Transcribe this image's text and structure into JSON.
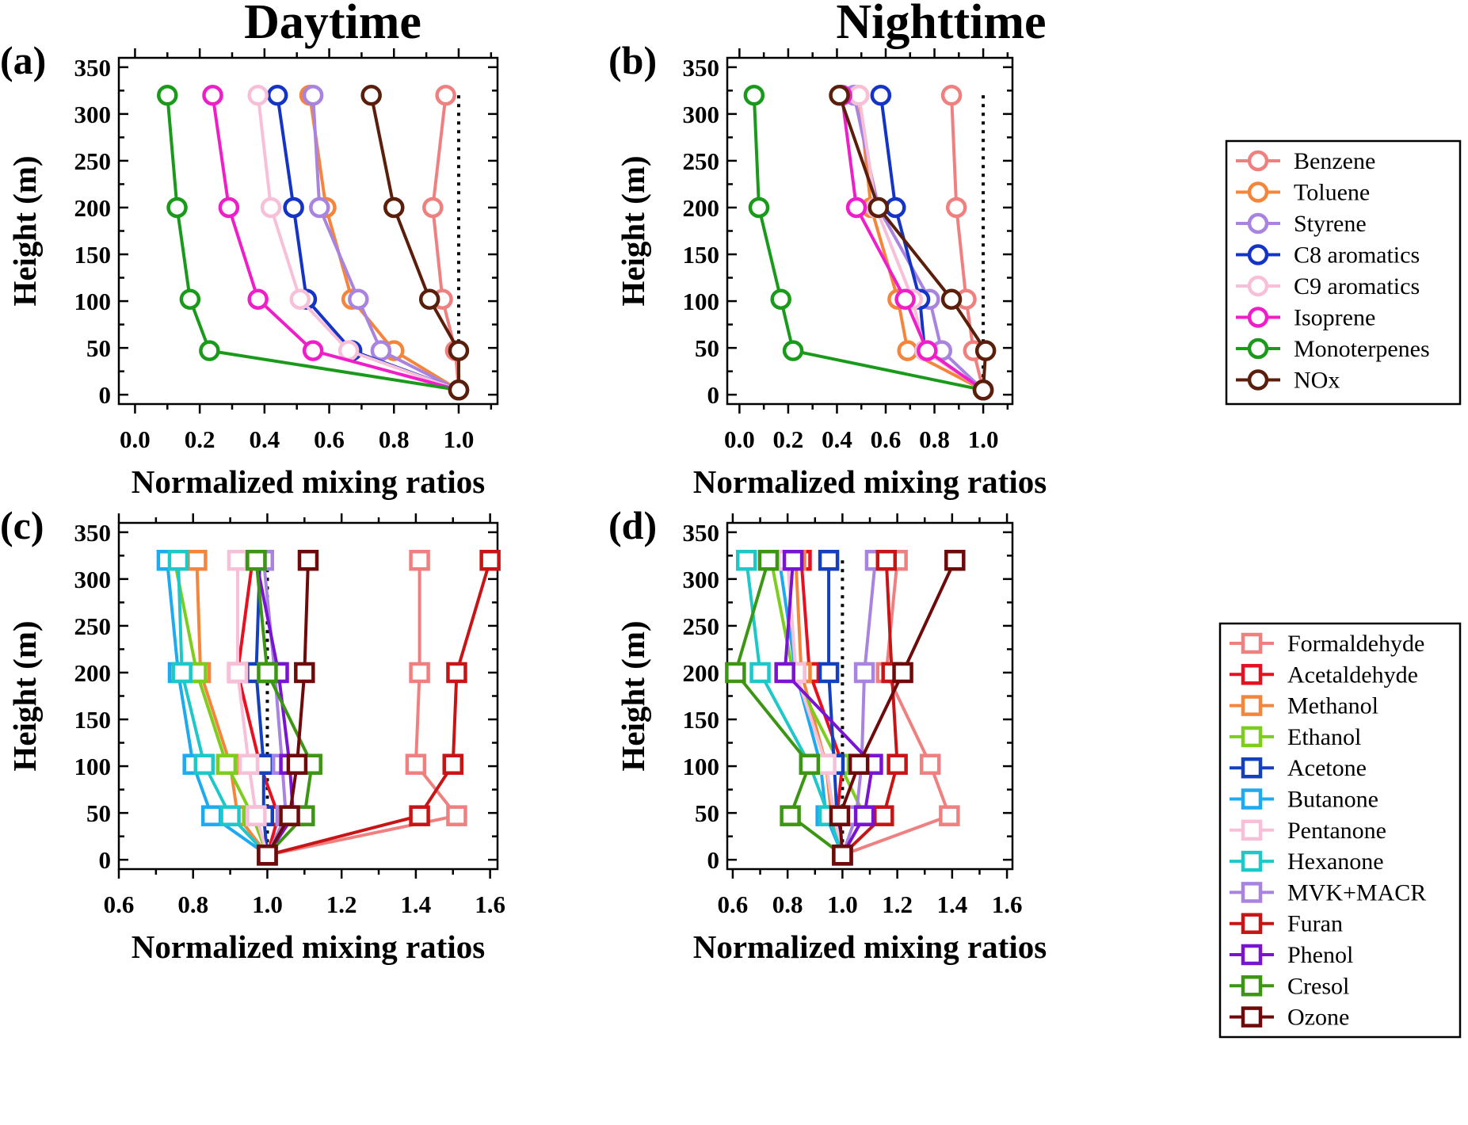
{
  "column_titles": [
    "Daytime",
    "Nighttime"
  ],
  "legends": {
    "top": [
      "Benzene",
      "Toluene",
      "Styrene",
      "C8 aromatics",
      "C9 aromatics",
      "Isoprene",
      "Monoterpenes",
      "NOx"
    ],
    "bottom": [
      "Formaldehyde",
      "Acetaldehyde",
      "Methanol",
      "Ethanol",
      "Acetone",
      "Butanone",
      "Pentanone",
      "Hexanone",
      "MVK+MACR",
      "Furan",
      "Phenol",
      "Cresol",
      "Ozone"
    ]
  },
  "colors": {
    "Benzene": "#f08080",
    "Toluene": "#f5853a",
    "Styrene": "#a883e0",
    "C8 aromatics": "#1434c8",
    "C9 aromatics": "#f8c0d8",
    "Isoprene": "#f01ec8",
    "Monoterpenes": "#1a9a1a",
    "NOx": "#5a1e0a",
    "Formaldehyde": "#f08080",
    "Acetaldehyde": "#e8101e",
    "Methanol": "#f5853a",
    "Ethanol": "#7ccd1e",
    "Acetone": "#1440c0",
    "Butanone": "#1eaaf0",
    "Pentanone": "#f8c0d8",
    "Hexanone": "#1ec8c8",
    "MVK+MACR": "#a883e0",
    "Furan": "#c81414",
    "Phenol": "#7814d2",
    "Cresol": "#3c9614",
    "Ozone": "#6e0a0a"
  },
  "chart_data": [
    {
      "panel": "(a)",
      "type": "line",
      "marker": "circle",
      "xlabel": "Normalized mixing ratios",
      "ylabel": "Height (m)",
      "xlim": [
        -0.05,
        1.12
      ],
      "ylim": [
        -10,
        360
      ],
      "xticks": [
        "0.0",
        "0.2",
        "0.4",
        "0.6",
        "0.8",
        "1.0"
      ],
      "xtick_values": [
        0,
        0.2,
        0.4,
        0.6,
        0.8,
        1.0
      ],
      "yticks": [
        "0",
        "50",
        "100",
        "150",
        "200",
        "250",
        "300",
        "350"
      ],
      "ytick_values": [
        0,
        50,
        100,
        150,
        200,
        250,
        300,
        350
      ],
      "reference_line": {
        "x": 1.0,
        "y0": 0,
        "y1": 320
      },
      "heights": [
        5,
        47,
        102,
        200,
        320
      ],
      "series": [
        {
          "name": "Benzene",
          "values": [
            1.0,
            0.99,
            0.95,
            0.92,
            0.96
          ]
        },
        {
          "name": "Toluene",
          "values": [
            1.0,
            0.8,
            0.67,
            0.59,
            0.54
          ]
        },
        {
          "name": "Styrene",
          "values": [
            1.0,
            0.76,
            0.69,
            0.57,
            0.55
          ]
        },
        {
          "name": "C8 aromatics",
          "values": [
            1.0,
            0.67,
            0.53,
            0.49,
            0.44
          ]
        },
        {
          "name": "C9 aromatics",
          "values": [
            1.0,
            0.66,
            0.51,
            0.42,
            0.38
          ]
        },
        {
          "name": "Isoprene",
          "values": [
            1.0,
            0.55,
            0.38,
            0.29,
            0.24
          ]
        },
        {
          "name": "Monoterpenes",
          "values": [
            1.0,
            0.23,
            0.17,
            0.13,
            0.1
          ]
        },
        {
          "name": "NOx",
          "values": [
            1.0,
            1.0,
            0.91,
            0.8,
            0.73
          ]
        }
      ]
    },
    {
      "panel": "(b)",
      "type": "line",
      "marker": "circle",
      "xlabel": "Normalized mixing ratios",
      "ylabel": "Height (m)",
      "xlim": [
        -0.05,
        1.12
      ],
      "ylim": [
        -10,
        360
      ],
      "xticks": [
        "0.0",
        "0.2",
        "0.4",
        "0.6",
        "0.8",
        "1.0"
      ],
      "xtick_values": [
        0,
        0.2,
        0.4,
        0.6,
        0.8,
        1.0
      ],
      "yticks": [
        "0",
        "50",
        "100",
        "150",
        "200",
        "250",
        "300",
        "350"
      ],
      "ytick_values": [
        0,
        50,
        100,
        150,
        200,
        250,
        300,
        350
      ],
      "reference_line": {
        "x": 1.0,
        "y0": 0,
        "y1": 320
      },
      "heights": [
        5,
        47,
        102,
        200,
        320
      ],
      "series": [
        {
          "name": "Benzene",
          "values": [
            1.0,
            0.96,
            0.93,
            0.89,
            0.87
          ]
        },
        {
          "name": "Toluene",
          "values": [
            1.0,
            0.69,
            0.65,
            0.54,
            0.49
          ]
        },
        {
          "name": "Styrene",
          "values": [
            1.0,
            0.83,
            0.78,
            0.57,
            0.47
          ]
        },
        {
          "name": "C8 aromatics",
          "values": [
            1.0,
            0.76,
            0.74,
            0.64,
            0.58
          ]
        },
        {
          "name": "C9 aromatics",
          "values": [
            1.0,
            0.76,
            0.71,
            0.56,
            0.49
          ]
        },
        {
          "name": "Isoprene",
          "values": [
            1.0,
            0.77,
            0.68,
            0.48,
            0.42
          ]
        },
        {
          "name": "Monoterpenes",
          "values": [
            1.0,
            0.22,
            0.17,
            0.08,
            0.06
          ]
        },
        {
          "name": "NOx",
          "values": [
            1.0,
            1.01,
            0.87,
            0.57,
            0.41
          ]
        }
      ]
    },
    {
      "panel": "(c)",
      "type": "line",
      "marker": "square",
      "xlabel": "Normalized mixing ratios",
      "ylabel": "Height (m)",
      "xlim": [
        0.6,
        1.62
      ],
      "ylim": [
        -10,
        360
      ],
      "xticks": [
        "0.6",
        "0.8",
        "1.0",
        "1.2",
        "1.4",
        "1.6"
      ],
      "xtick_values": [
        0.6,
        0.8,
        1.0,
        1.2,
        1.4,
        1.6
      ],
      "yticks": [
        "0",
        "50",
        "100",
        "150",
        "200",
        "250",
        "300",
        "350"
      ],
      "ytick_values": [
        0,
        50,
        100,
        150,
        200,
        250,
        300,
        350
      ],
      "reference_line": {
        "x": 1.0,
        "y0": 0,
        "y1": 320
      },
      "heights": [
        5,
        47,
        102,
        200,
        320
      ],
      "series": [
        {
          "name": "Formaldehyde",
          "values": [
            1.0,
            1.51,
            1.4,
            1.41,
            1.41
          ]
        },
        {
          "name": "Acetaldehyde",
          "values": [
            1.0,
            1.03,
            0.98,
            0.92,
            0.96
          ]
        },
        {
          "name": "Methanol",
          "values": [
            1.0,
            0.92,
            0.9,
            0.82,
            0.81
          ]
        },
        {
          "name": "Ethanol",
          "values": [
            1.0,
            0.96,
            0.89,
            0.81,
            0.75
          ]
        },
        {
          "name": "Acetone",
          "values": [
            1.0,
            0.99,
            0.99,
            0.97,
            0.98
          ]
        },
        {
          "name": "Butanone",
          "values": [
            1.0,
            0.85,
            0.8,
            0.76,
            0.73
          ]
        },
        {
          "name": "Pentanone",
          "values": [
            1.0,
            0.97,
            0.95,
            0.92,
            0.92
          ]
        },
        {
          "name": "Hexanone",
          "values": [
            1.0,
            0.9,
            0.83,
            0.77,
            0.76
          ]
        },
        {
          "name": "MVK+MACR",
          "values": [
            1.0,
            1.05,
            1.04,
            1.02,
            0.99
          ]
        },
        {
          "name": "Furan",
          "values": [
            1.0,
            1.41,
            1.5,
            1.51,
            1.6
          ]
        },
        {
          "name": "Phenol",
          "values": [
            1.0,
            1.07,
            1.06,
            1.03,
            0.97
          ]
        },
        {
          "name": "Cresol",
          "values": [
            1.0,
            1.1,
            1.12,
            1.0,
            0.97
          ]
        },
        {
          "name": "Ozone",
          "values": [
            1.0,
            1.06,
            1.08,
            1.1,
            1.11
          ]
        }
      ]
    },
    {
      "panel": "(d)",
      "type": "line",
      "marker": "square",
      "xlabel": "Normalized mixing ratios",
      "ylabel": "Height (m)",
      "xlim": [
        0.58,
        1.62
      ],
      "ylim": [
        -10,
        360
      ],
      "xticks": [
        "0.6",
        "0.8",
        "1.0",
        "1.2",
        "1.4",
        "1.6"
      ],
      "xtick_values": [
        0.6,
        0.8,
        1.0,
        1.2,
        1.4,
        1.6
      ],
      "yticks": [
        "0",
        "50",
        "100",
        "150",
        "200",
        "250",
        "300",
        "350"
      ],
      "ytick_values": [
        0,
        50,
        100,
        150,
        200,
        250,
        300,
        350
      ],
      "reference_line": {
        "x": 1.0,
        "y0": 0,
        "y1": 320
      },
      "heights": [
        5,
        47,
        102,
        200,
        320
      ],
      "series": [
        {
          "name": "Formaldehyde",
          "values": [
            1.0,
            1.39,
            1.32,
            1.16,
            1.2
          ]
        },
        {
          "name": "Acetaldehyde",
          "values": [
            1.0,
            0.98,
            1.0,
            0.88,
            0.85
          ]
        },
        {
          "name": "Methanol",
          "values": [
            1.0,
            0.96,
            0.94,
            0.85,
            0.83
          ]
        },
        {
          "name": "Ethanol",
          "values": [
            1.0,
            1.08,
            0.99,
            0.82,
            0.74
          ]
        },
        {
          "name": "Acetone",
          "values": [
            1.0,
            0.98,
            0.97,
            0.95,
            0.95
          ]
        },
        {
          "name": "Butanone",
          "values": [
            1.0,
            0.94,
            0.92,
            0.83,
            0.77
          ]
        },
        {
          "name": "Pentanone",
          "values": [
            1.0,
            0.97,
            0.94,
            0.83,
            0.8
          ]
        },
        {
          "name": "Hexanone",
          "values": [
            1.0,
            0.95,
            0.88,
            0.7,
            0.65
          ]
        },
        {
          "name": "MVK+MACR",
          "values": [
            1.0,
            1.05,
            1.07,
            1.08,
            1.12
          ]
        },
        {
          "name": "Furan",
          "values": [
            1.0,
            1.15,
            1.2,
            1.18,
            1.16
          ]
        },
        {
          "name": "Phenol",
          "values": [
            1.0,
            1.08,
            1.11,
            0.79,
            0.82
          ]
        },
        {
          "name": "Cresol",
          "values": [
            1.0,
            0.81,
            0.88,
            0.61,
            0.73
          ]
        },
        {
          "name": "Ozone",
          "values": [
            1.0,
            0.99,
            1.06,
            1.22,
            1.41
          ]
        }
      ]
    }
  ]
}
